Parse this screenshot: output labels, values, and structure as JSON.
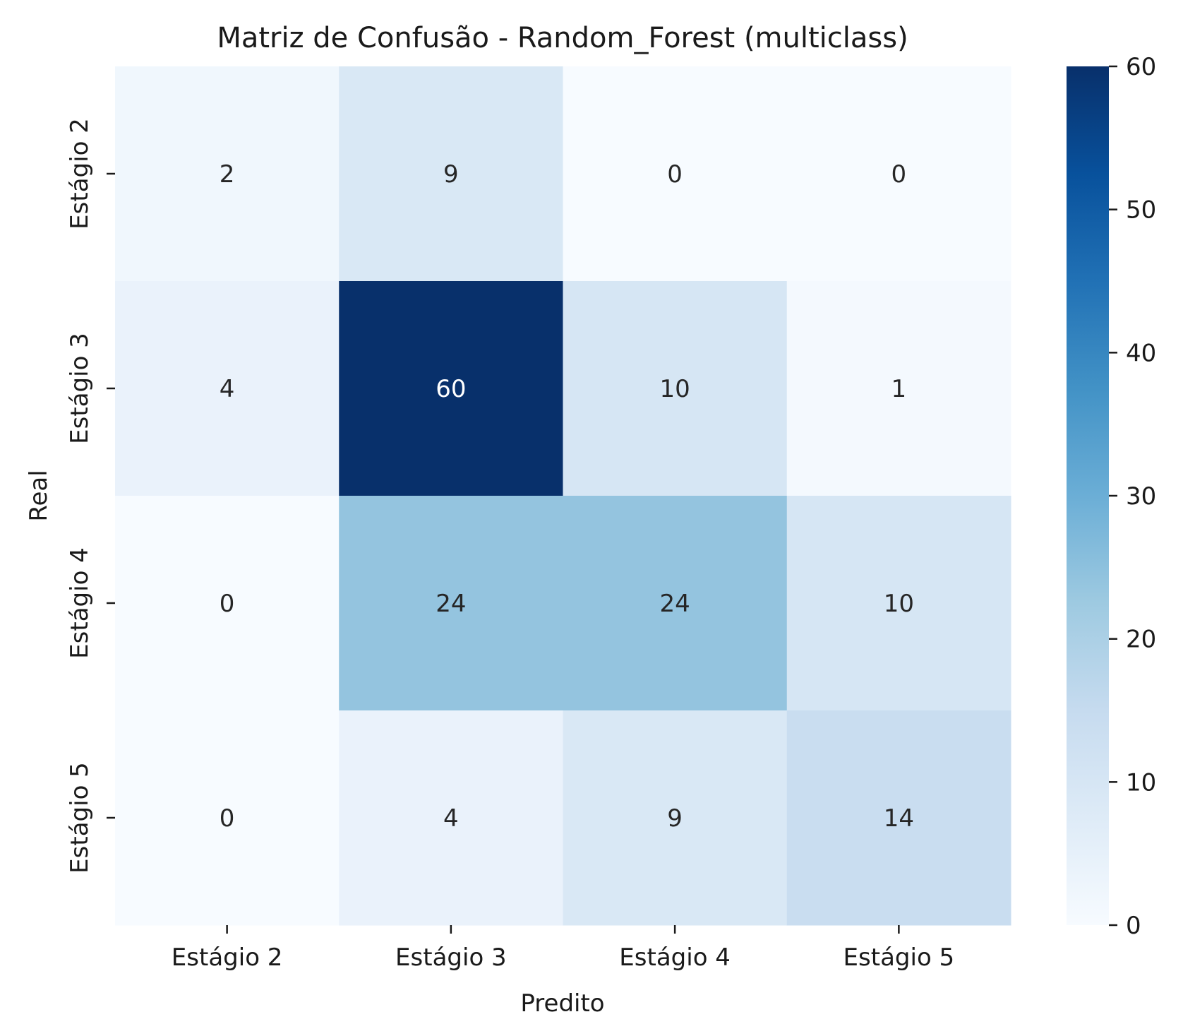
{
  "chart_data": {
    "type": "heatmap",
    "title": "Matriz de Confusão - Random_Forest (multiclass)",
    "xlabel": "Predito",
    "ylabel": "Real",
    "x_categories": [
      "Estágio 2",
      "Estágio 3",
      "Estágio 4",
      "Estágio 5"
    ],
    "y_categories": [
      "Estágio 2",
      "Estágio 3",
      "Estágio 4",
      "Estágio 5"
    ],
    "values": [
      [
        2,
        9,
        0,
        0
      ],
      [
        4,
        60,
        10,
        1
      ],
      [
        0,
        24,
        24,
        10
      ],
      [
        0,
        4,
        9,
        14
      ]
    ],
    "colormap": "Blues",
    "colorbar": {
      "min": 0,
      "max": 60,
      "ticks": [
        0,
        10,
        20,
        30,
        40,
        50,
        60
      ]
    },
    "text_colors": {
      "dark": "#262626",
      "light": "#ffffff"
    }
  }
}
